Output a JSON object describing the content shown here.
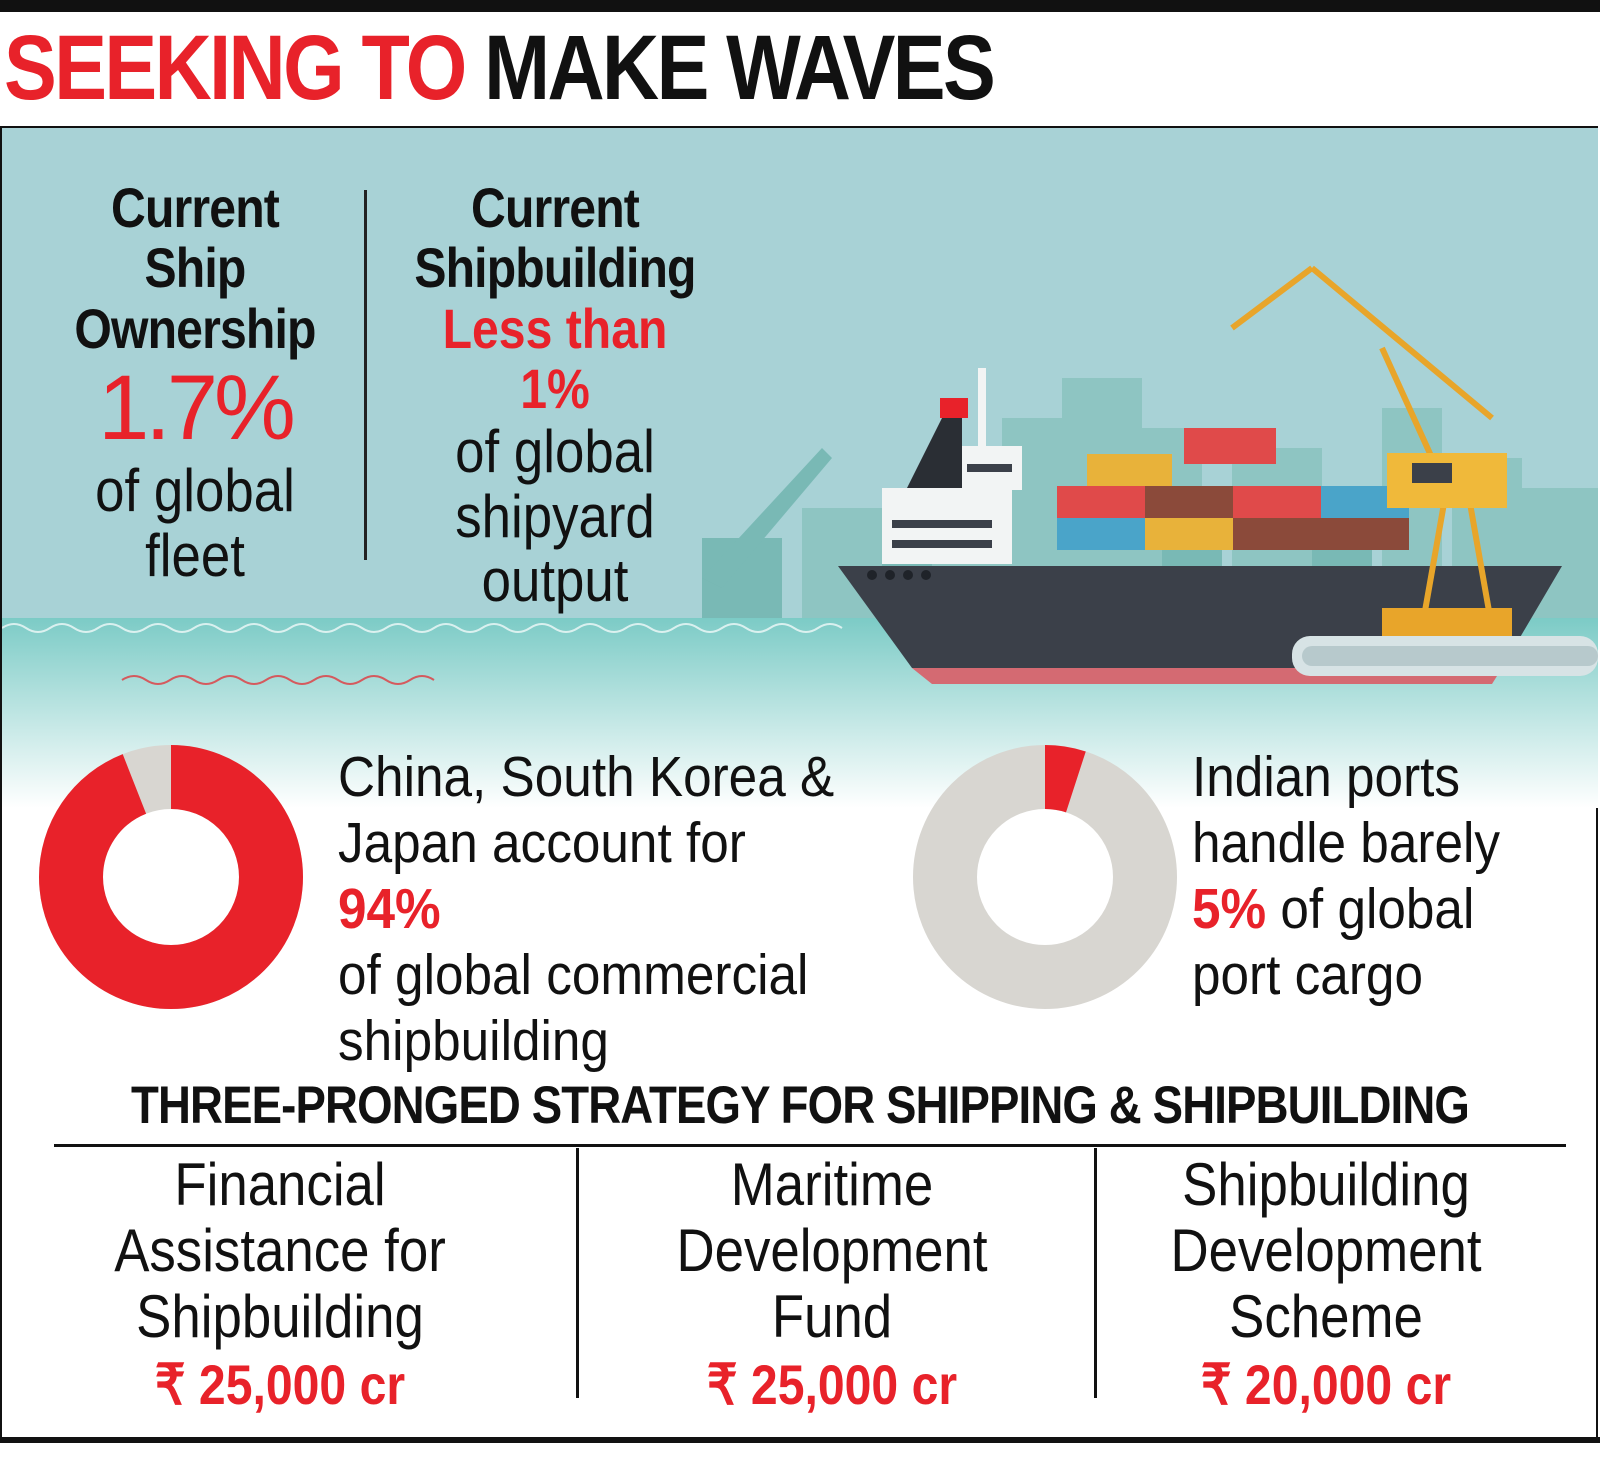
{
  "header": {
    "title_red": "SEEKING TO",
    "title_black": "MAKE WAVES"
  },
  "stats": {
    "ownership": {
      "heading_1": "Current",
      "heading_2": "Ship",
      "heading_3": "Ownership",
      "value": "1.7%",
      "desc_1": "of global",
      "desc_2": "fleet"
    },
    "shipbuilding": {
      "heading_1": "Current",
      "heading_2": "Shipbuilding",
      "value": "Less than 1%",
      "desc_1": "of global",
      "desc_2": "shipyard",
      "desc_3": "output"
    }
  },
  "donuts": [
    {
      "share": 0.94,
      "text_1": "China, South Korea &",
      "text_2a": "Japan account for ",
      "text_2b": "94%",
      "text_3": "of global commercial",
      "text_4": "shipbuilding"
    },
    {
      "share": 0.05,
      "text_1": "Indian ports",
      "text_2": "handle barely",
      "text_3a": "5%",
      "text_3b": " of global",
      "text_4": "port cargo"
    }
  ],
  "strategy": {
    "title": "THREE-PRONGED STRATEGY FOR SHIPPING & SHIPBUILDING",
    "items": [
      {
        "line_1": "Financial",
        "line_2": "Assistance for",
        "line_3": "Shipbuilding",
        "amount": "₹ 25,000 cr"
      },
      {
        "line_1": "Maritime",
        "line_2": "Development",
        "line_3": "Fund",
        "amount": "₹ 25,000 cr"
      },
      {
        "line_1": "Shipbuilding",
        "line_2": "Development",
        "line_3": "Scheme",
        "amount": "₹ 20,000 cr"
      }
    ]
  },
  "colors": {
    "accent_red": "#e8222a",
    "sky": "#a8d2d6",
    "sea": "#6cc4bf",
    "donut_grey": "#d8d6d1"
  }
}
